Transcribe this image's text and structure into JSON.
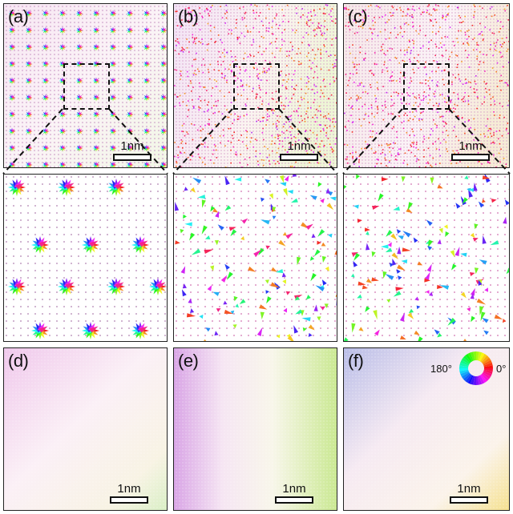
{
  "panels": {
    "a": {
      "label": "(a)"
    },
    "b": {
      "label": "(b)"
    },
    "c": {
      "label": "(c)"
    },
    "d": {
      "label": "(d)"
    },
    "e": {
      "label": "(e)"
    },
    "f": {
      "label": "(f)"
    }
  },
  "scale_bar": {
    "label": "1nm"
  },
  "color_wheel": {
    "left_label": "180°",
    "right_label": "0°"
  }
}
